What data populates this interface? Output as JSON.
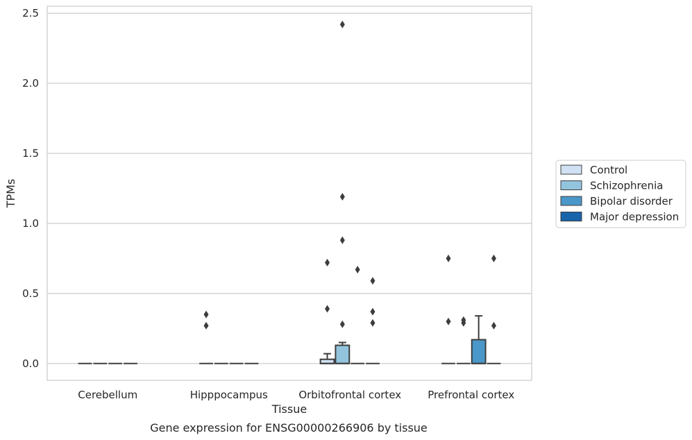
{
  "caption": "Gene expression for ENSG00000266906 by tissue",
  "chart_data": {
    "type": "box",
    "title": "",
    "xlabel": "Tissue",
    "ylabel": "TPMs",
    "ylim": [
      -0.12,
      2.55
    ],
    "yticks": [
      0.0,
      0.5,
      1.0,
      1.5,
      2.0,
      2.5
    ],
    "ytick_labels": [
      "0.0",
      "0.5",
      "1.0",
      "1.5",
      "2.0",
      "2.5"
    ],
    "grid": true,
    "legend_position": "right",
    "categories": [
      "Cerebellum",
      "Hipppocampus",
      "Orbitofrontal cortex",
      "Prefrontal cortex"
    ],
    "series": [
      {
        "name": "Control",
        "color": "#cfe1f2",
        "boxes": [
          {
            "q1": 0,
            "median": 0,
            "q3": 0,
            "whisker_low": 0,
            "whisker_high": 0,
            "outliers": []
          },
          {
            "q1": 0,
            "median": 0,
            "q3": 0,
            "whisker_low": 0,
            "whisker_high": 0,
            "outliers": [
              0.27,
              0.35
            ]
          },
          {
            "q1": 0,
            "median": 0,
            "q3": 0.03,
            "whisker_low": 0,
            "whisker_high": 0.07,
            "outliers": [
              0.39,
              0.72
            ]
          },
          {
            "q1": 0,
            "median": 0,
            "q3": 0,
            "whisker_low": 0,
            "whisker_high": 0,
            "outliers": [
              0.3,
              0.75
            ]
          }
        ]
      },
      {
        "name": "Schizophrenia",
        "color": "#93c4de",
        "boxes": [
          {
            "q1": 0,
            "median": 0,
            "q3": 0,
            "whisker_low": 0,
            "whisker_high": 0,
            "outliers": []
          },
          {
            "q1": 0,
            "median": 0,
            "q3": 0,
            "whisker_low": 0,
            "whisker_high": 0,
            "outliers": []
          },
          {
            "q1": 0,
            "median": 0,
            "q3": 0.13,
            "whisker_low": 0,
            "whisker_high": 0.15,
            "outliers": [
              0.28,
              0.88,
              1.19,
              2.42
            ]
          },
          {
            "q1": 0,
            "median": 0,
            "q3": 0,
            "whisker_low": 0,
            "whisker_high": 0,
            "outliers": [
              0.29,
              0.31
            ]
          }
        ]
      },
      {
        "name": "Bipolar disorder",
        "color": "#4a98c9",
        "boxes": [
          {
            "q1": 0,
            "median": 0,
            "q3": 0,
            "whisker_low": 0,
            "whisker_high": 0,
            "outliers": []
          },
          {
            "q1": 0,
            "median": 0,
            "q3": 0,
            "whisker_low": 0,
            "whisker_high": 0,
            "outliers": []
          },
          {
            "q1": 0,
            "median": 0,
            "q3": 0,
            "whisker_low": 0,
            "whisker_high": 0,
            "outliers": [
              0.67
            ]
          },
          {
            "q1": 0,
            "median": 0,
            "q3": 0.17,
            "whisker_low": 0,
            "whisker_high": 0.34,
            "outliers": []
          }
        ]
      },
      {
        "name": "Major depression",
        "color": "#1764ab",
        "boxes": [
          {
            "q1": 0,
            "median": 0,
            "q3": 0,
            "whisker_low": 0,
            "whisker_high": 0,
            "outliers": []
          },
          {
            "q1": 0,
            "median": 0,
            "q3": 0,
            "whisker_low": 0,
            "whisker_high": 0,
            "outliers": []
          },
          {
            "q1": 0,
            "median": 0,
            "q3": 0,
            "whisker_low": 0,
            "whisker_high": 0,
            "outliers": [
              0.29,
              0.37,
              0.59
            ]
          },
          {
            "q1": 0,
            "median": 0,
            "q3": 0,
            "whisker_low": 0,
            "whisker_high": 0,
            "outliers": [
              0.27,
              0.75
            ]
          }
        ]
      }
    ]
  }
}
